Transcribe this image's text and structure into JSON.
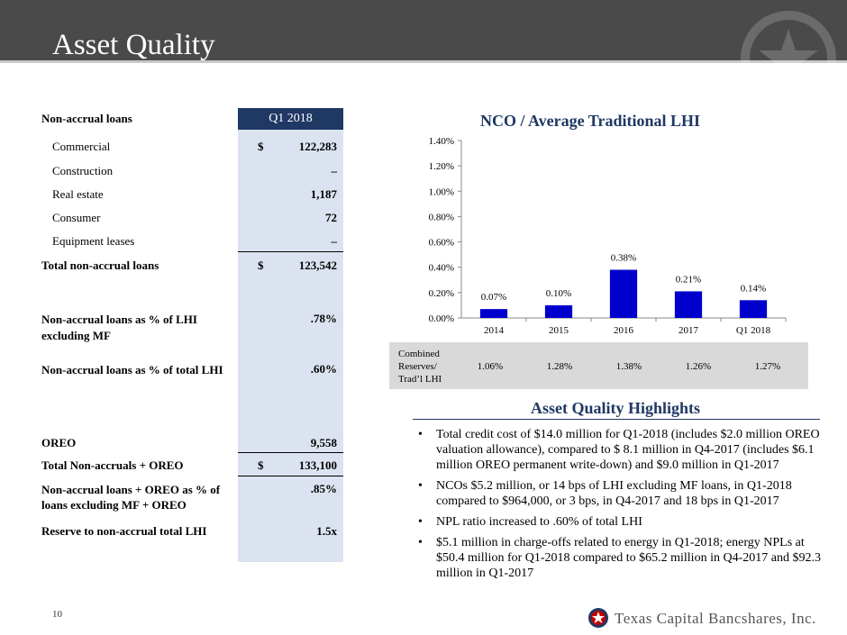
{
  "header": {
    "title": "Asset Quality"
  },
  "table": {
    "column_header": "Q1 2018",
    "section_label": "Non-accrual loans",
    "rows": [
      {
        "label": "Commercial",
        "dollar": "$",
        "value": "122,283"
      },
      {
        "label": "Construction",
        "dollar": "",
        "value": "–"
      },
      {
        "label": "Real estate",
        "dollar": "",
        "value": "1,187"
      },
      {
        "label": "Consumer",
        "dollar": "",
        "value": "72"
      },
      {
        "label": "Equipment leases",
        "dollar": "",
        "value": "–"
      }
    ],
    "total": {
      "label": "Total non-accrual loans",
      "dollar": "$",
      "value": "123,542"
    },
    "ratio1": {
      "label": "Non-accrual loans as % of LHI excluding MF",
      "value": ".78%"
    },
    "ratio2": {
      "label": "Non-accrual loans as % of total LHI",
      "value": ".60%"
    },
    "oreo": {
      "label": "OREO",
      "value": "9,558"
    },
    "total_oreo": {
      "label": "Total Non-accruals + OREO",
      "dollar": "$",
      "value": "133,100"
    },
    "ratio3": {
      "label": "Non-accrual loans + OREO as % of loans excluding MF + OREO",
      "value": ".85%"
    },
    "reserve": {
      "label": "Reserve to non-accrual total LHI",
      "value": "1.5x"
    }
  },
  "chart_data": {
    "type": "bar",
    "title": "NCO / Average Traditional LHI",
    "categories": [
      "2014",
      "2015",
      "2016",
      "2017",
      "Q1 2018"
    ],
    "values": [
      0.07,
      0.1,
      0.38,
      0.21,
      0.14
    ],
    "data_labels": [
      "0.07%",
      "0.10%",
      "0.38%",
      "0.21%",
      "0.14%"
    ],
    "yticks": [
      "0.00%",
      "0.20%",
      "0.40%",
      "0.60%",
      "0.80%",
      "1.00%",
      "1.20%",
      "1.40%"
    ],
    "ylim": [
      0,
      1.4
    ],
    "bar_color": "#0000cc",
    "grid": false
  },
  "combined": {
    "label_lines": [
      "Combined",
      "Reserves/",
      "Trad’l LHI"
    ],
    "values": [
      "1.06%",
      "1.28%",
      "1.38%",
      "1.26%",
      "1.27%"
    ]
  },
  "highlights": {
    "title": "Asset Quality Highlights",
    "items": [
      "Total credit cost of $14.0 million for Q1-2018 (includes $2.0 million OREO valuation allowance), compared to $ 8.1 million in Q4-2017 (includes $6.1 million OREO permanent write-down) and $9.0 million in Q1-2017",
      "NCOs $5.2 million, or 14 bps of LHI excluding MF loans, in Q1-2018 compared to $964,000, or 3 bps, in Q4-2017 and 18 bps in Q1-2017",
      "NPL ratio increased to .60% of total LHI",
      "$5.1 million in charge-offs related to energy in Q1-2018; energy NPLs at $50.4 million for Q1-2018 compared to $65.2 million in Q4-2017 and $92.3 million in Q1-2017"
    ]
  },
  "footer": {
    "page_number": "10",
    "brand": "Texas Capital Bancshares, Inc."
  },
  "colors": {
    "navy": "#1f3864",
    "shade": "#dce3f0",
    "header_bg": "#4a4a4a"
  }
}
